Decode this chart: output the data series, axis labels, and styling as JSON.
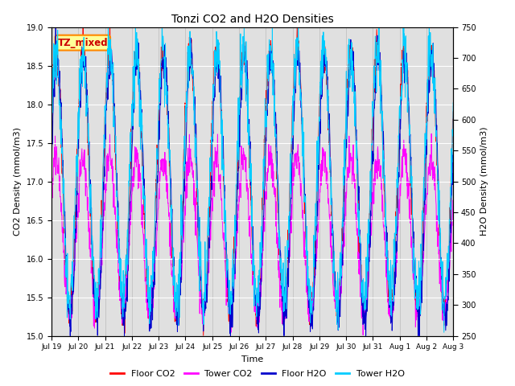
{
  "title": "Tonzi CO2 and H2O Densities",
  "xlabel": "Time",
  "ylabel_left": "CO2 Density (mmol/m3)",
  "ylabel_right": "H2O Density (mmol/m3)",
  "ylim_left": [
    15.0,
    19.0
  ],
  "ylim_right": [
    250,
    750
  ],
  "yticks_left": [
    15.0,
    15.5,
    16.0,
    16.5,
    17.0,
    17.5,
    18.0,
    18.5,
    19.0
  ],
  "yticks_right": [
    250,
    300,
    350,
    400,
    450,
    500,
    550,
    600,
    650,
    700,
    750
  ],
  "xtick_labels": [
    "Jul 19",
    "Jul 20",
    "Jul 21",
    "Jul 22",
    "Jul 23",
    "Jul 24",
    "Jul 25",
    "Jul 26",
    "Jul 27",
    "Jul 28",
    "Jul 29",
    "Jul 30",
    "Jul 31",
    "Aug 1",
    "Aug 2",
    "Aug 3"
  ],
  "colors": {
    "floor_co2": "#FF0000",
    "tower_co2": "#FF00FF",
    "floor_h2o": "#0000CC",
    "tower_h2o": "#00CCFF"
  },
  "legend_labels": [
    "Floor CO2",
    "Tower CO2",
    "Floor H2O",
    "Tower H2O"
  ],
  "annotation_text": "TZ_mixed",
  "annotation_facecolor": "#FFFF99",
  "annotation_edgecolor": "#FF8800",
  "annotation_textcolor": "#CC0000",
  "bg_color": "#E0E0E0",
  "n_days": 15,
  "n_points_per_day": 96,
  "figsize": [
    6.4,
    4.8
  ],
  "dpi": 100
}
